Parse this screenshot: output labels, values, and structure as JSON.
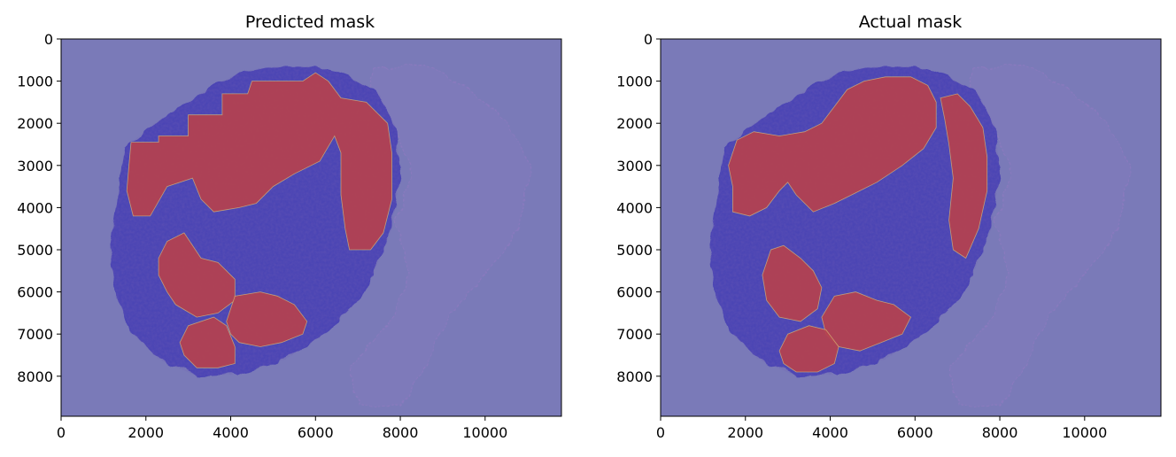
{
  "chart_data": [
    {
      "type": "heatmap",
      "title": "Predicted mask",
      "xlim": [
        0,
        11800
      ],
      "ylim": [
        8950,
        0
      ],
      "xticks": [
        0,
        2000,
        4000,
        6000,
        8000,
        10000
      ],
      "yticks": [
        0,
        1000,
        2000,
        3000,
        4000,
        5000,
        6000,
        7000,
        8000
      ],
      "regions": [
        {
          "label": "tumor",
          "color": "#b5414e",
          "polygons": [
            [
              [
                1650,
                2450
              ],
              [
                2300,
                2450
              ],
              [
                2300,
                2300
              ],
              [
                3000,
                2300
              ],
              [
                3000,
                1800
              ],
              [
                3800,
                1800
              ],
              [
                3800,
                1300
              ],
              [
                4400,
                1300
              ],
              [
                4500,
                1000
              ],
              [
                5700,
                1000
              ],
              [
                6000,
                800
              ],
              [
                6300,
                1000
              ],
              [
                6600,
                1400
              ],
              [
                7200,
                1500
              ],
              [
                7700,
                2000
              ],
              [
                7800,
                2700
              ],
              [
                7800,
                3800
              ],
              [
                7600,
                4600
              ],
              [
                7300,
                5000
              ],
              [
                6800,
                5000
              ],
              [
                6700,
                4500
              ],
              [
                6600,
                3700
              ],
              [
                6600,
                2700
              ],
              [
                6450,
                2300
              ],
              [
                6100,
                2900
              ],
              [
                5500,
                3200
              ],
              [
                5000,
                3500
              ],
              [
                4600,
                3900
              ],
              [
                4200,
                4000
              ],
              [
                3600,
                4100
              ],
              [
                3300,
                3800
              ],
              [
                3100,
                3300
              ],
              [
                2500,
                3500
              ],
              [
                2100,
                4200
              ],
              [
                1700,
                4200
              ],
              [
                1550,
                3600
              ],
              [
                1600,
                3000
              ]
            ],
            [
              [
                2300,
                5200
              ],
              [
                2500,
                4800
              ],
              [
                2900,
                4600
              ],
              [
                3300,
                5200
              ],
              [
                3700,
                5300
              ],
              [
                4100,
                5700
              ],
              [
                4100,
                6200
              ],
              [
                3700,
                6500
              ],
              [
                3200,
                6600
              ],
              [
                2700,
                6300
              ],
              [
                2500,
                6000
              ],
              [
                2300,
                5600
              ]
            ],
            [
              [
                3900,
                6700
              ],
              [
                4100,
                6100
              ],
              [
                4700,
                6000
              ],
              [
                5100,
                6100
              ],
              [
                5500,
                6300
              ],
              [
                5800,
                6700
              ],
              [
                5700,
                7000
              ],
              [
                5200,
                7200
              ],
              [
                4700,
                7300
              ],
              [
                4200,
                7200
              ],
              [
                4000,
                7000
              ]
            ],
            [
              [
                2800,
                7200
              ],
              [
                3000,
                6800
              ],
              [
                3600,
                6600
              ],
              [
                3900,
                6800
              ],
              [
                4100,
                7300
              ],
              [
                4100,
                7700
              ],
              [
                3700,
                7800
              ],
              [
                3200,
                7800
              ],
              [
                2900,
                7500
              ]
            ]
          ]
        }
      ]
    },
    {
      "type": "heatmap",
      "title": "Actual mask",
      "xlim": [
        0,
        11800
      ],
      "ylim": [
        8950,
        0
      ],
      "xticks": [
        0,
        2000,
        4000,
        6000,
        8000,
        10000
      ],
      "yticks": [
        0,
        1000,
        2000,
        3000,
        4000,
        5000,
        6000,
        7000,
        8000
      ],
      "regions": [
        {
          "label": "tumor",
          "color": "#b5414e",
          "polygons": [
            [
              [
                1800,
                2400
              ],
              [
                2200,
                2200
              ],
              [
                2800,
                2300
              ],
              [
                3400,
                2200
              ],
              [
                3800,
                2000
              ],
              [
                4100,
                1600
              ],
              [
                4400,
                1200
              ],
              [
                4800,
                1000
              ],
              [
                5300,
                900
              ],
              [
                5900,
                900
              ],
              [
                6300,
                1100
              ],
              [
                6500,
                1500
              ],
              [
                6500,
                2100
              ],
              [
                6200,
                2600
              ],
              [
                5700,
                3000
              ],
              [
                5100,
                3400
              ],
              [
                4500,
                3700
              ],
              [
                4100,
                3900
              ],
              [
                3600,
                4100
              ],
              [
                3200,
                3700
              ],
              [
                3000,
                3400
              ],
              [
                2800,
                3600
              ],
              [
                2500,
                4000
              ],
              [
                2100,
                4200
              ],
              [
                1700,
                4100
              ],
              [
                1700,
                3500
              ],
              [
                1600,
                3000
              ]
            ],
            [
              [
                6600,
                1400
              ],
              [
                7000,
                1300
              ],
              [
                7300,
                1600
              ],
              [
                7600,
                2100
              ],
              [
                7700,
                2800
              ],
              [
                7700,
                3600
              ],
              [
                7500,
                4500
              ],
              [
                7200,
                5200
              ],
              [
                6900,
                5000
              ],
              [
                6800,
                4300
              ],
              [
                6900,
                3300
              ],
              [
                6800,
                2500
              ],
              [
                6700,
                1900
              ]
            ],
            [
              [
                2400,
                5600
              ],
              [
                2600,
                5000
              ],
              [
                2900,
                4900
              ],
              [
                3300,
                5200
              ],
              [
                3600,
                5500
              ],
              [
                3800,
                5900
              ],
              [
                3700,
                6400
              ],
              [
                3300,
                6700
              ],
              [
                2800,
                6600
              ],
              [
                2500,
                6200
              ]
            ],
            [
              [
                3800,
                6600
              ],
              [
                4100,
                6100
              ],
              [
                4600,
                6000
              ],
              [
                5100,
                6200
              ],
              [
                5500,
                6300
              ],
              [
                5900,
                6600
              ],
              [
                5700,
                7000
              ],
              [
                5200,
                7200
              ],
              [
                4700,
                7400
              ],
              [
                4200,
                7300
              ],
              [
                3900,
                7000
              ]
            ],
            [
              [
                2800,
                7400
              ],
              [
                3000,
                7000
              ],
              [
                3500,
                6800
              ],
              [
                3900,
                6900
              ],
              [
                4200,
                7300
              ],
              [
                4100,
                7700
              ],
              [
                3700,
                7900
              ],
              [
                3200,
                7900
              ],
              [
                2900,
                7700
              ]
            ]
          ]
        }
      ]
    }
  ],
  "colors": {
    "background_mask": "#7a7ab8",
    "tissue": "#4c44b4",
    "tissue_dark": "#3a2f9a",
    "tumor": "#b5414e",
    "faint_tissue": "#8d7ac0"
  }
}
